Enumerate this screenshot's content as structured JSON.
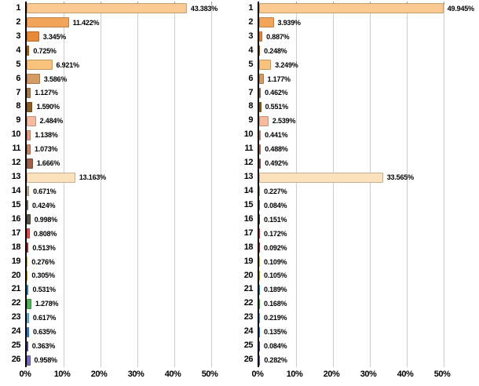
{
  "style": {
    "background": "#FFFFFF",
    "axis_color": "#000000",
    "grid_color": "#CCCCCC",
    "tick_color": "#999999",
    "text_color": "#000000",
    "bar_border": "rgba(0,0,0,0.22)",
    "bar_colors": [
      "#FACA92",
      "#F2A55A",
      "#E78A38",
      "#B06B1E",
      "#F9C37E",
      "#D39C64",
      "#A87B51",
      "#8B5E28",
      "#F7BA9E",
      "#E79E82",
      "#C8876B",
      "#9D5F48",
      "#FBE1BC",
      "#C6B69A",
      "#8A857C",
      "#5C544A",
      "#E94B4B",
      "#BE3B3C",
      "#F0DA70",
      "#F6C33E",
      "#3BA1C9",
      "#4FB455",
      "#74BAE5",
      "#3B82D1",
      "#6957A2",
      "#7F6ABB"
    ]
  },
  "chart_data": [
    {
      "type": "bar",
      "orientation": "horizontal",
      "title": "",
      "categories": [
        "1",
        "2",
        "3",
        "4",
        "5",
        "6",
        "7",
        "8",
        "9",
        "10",
        "11",
        "12",
        "13",
        "14",
        "15",
        "16",
        "17",
        "18",
        "19",
        "20",
        "21",
        "22",
        "23",
        "24",
        "25",
        "26"
      ],
      "values": [
        43.383,
        11.422,
        3.345,
        0.725,
        6.921,
        3.586,
        1.127,
        1.59,
        2.484,
        1.138,
        1.073,
        1.666,
        13.163,
        0.671,
        0.424,
        0.998,
        0.808,
        0.513,
        0.276,
        0.305,
        0.531,
        1.278,
        0.617,
        0.635,
        0.363,
        0.958
      ],
      "value_labels": [
        "43.383%",
        "11.422%",
        "3.345%",
        "0.725%",
        "6.921%",
        "3.586%",
        "1.127%",
        "1.590%",
        "2.484%",
        "1.138%",
        "1.073%",
        "1.666%",
        "13.163%",
        "0.671%",
        "0.424%",
        "0.998%",
        "0.808%",
        "0.513%",
        "0.276%",
        "0.305%",
        "0.531%",
        "1.278%",
        "0.617%",
        "0.635%",
        "0.363%",
        "0.958%"
      ],
      "xticks": [
        "0%",
        "10%",
        "20%",
        "30%",
        "40%",
        "50%"
      ],
      "xtick_values": [
        0,
        10,
        20,
        30,
        40,
        50
      ],
      "xlim": [
        0,
        55
      ],
      "grid": "vertical",
      "legend": "none"
    },
    {
      "type": "bar",
      "orientation": "horizontal",
      "title": "",
      "categories": [
        "1",
        "2",
        "3",
        "4",
        "5",
        "6",
        "7",
        "8",
        "9",
        "10",
        "11",
        "12",
        "13",
        "14",
        "15",
        "16",
        "17",
        "18",
        "19",
        "20",
        "21",
        "22",
        "23",
        "24",
        "25",
        "26"
      ],
      "values": [
        49.945,
        3.939,
        0.887,
        0.248,
        3.249,
        1.177,
        0.462,
        0.551,
        2.539,
        0.441,
        0.488,
        0.492,
        33.565,
        0.227,
        0.084,
        0.151,
        0.172,
        0.092,
        0.109,
        0.105,
        0.189,
        0.168,
        0.219,
        0.135,
        0.084,
        0.282
      ],
      "value_labels": [
        "49.945%",
        "3.939%",
        "0.887%",
        "0.248%",
        "3.249%",
        "1.177%",
        "0.462%",
        "0.551%",
        "2.539%",
        "0.441%",
        "0.488%",
        "0.492%",
        "33.565%",
        "0.227%",
        "0.084%",
        "0.151%",
        "0.172%",
        "0.092%",
        "0.109%",
        "0.105%",
        "0.189%",
        "0.168%",
        "0.219%",
        "0.135%",
        "0.084%",
        "0.282%"
      ],
      "xticks": [
        "0%",
        "10%",
        "20%",
        "30%",
        "40%",
        "50%"
      ],
      "xtick_values": [
        0,
        10,
        20,
        30,
        40,
        50
      ],
      "xlim": [
        0,
        60
      ],
      "grid": "vertical",
      "legend": "none"
    }
  ]
}
